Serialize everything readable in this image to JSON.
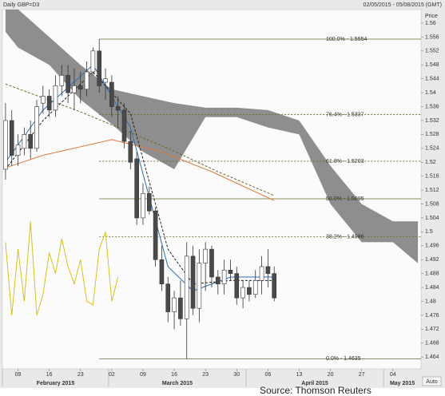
{
  "header": {
    "title": "Daily GBP=D3",
    "range": "02/05/2015 - 05/08/2015 (GMT)"
  },
  "source": "Source: Thomson Reuters",
  "auto_button": "Auto",
  "chart_data": {
    "type": "candlestick",
    "y_axis_label": "Price",
    "xlim": [
      "2015-02-05",
      "2015-05-08"
    ],
    "ylim": [
      1.4606,
      1.5639
    ],
    "yticks": [
      1.464,
      1.468,
      1.472,
      1.476,
      1.48,
      1.484,
      1.488,
      1.492,
      1.496,
      1.5,
      1.504,
      1.508,
      1.512,
      1.516,
      1.52,
      1.524,
      1.528,
      1.532,
      1.536,
      1.54,
      1.544,
      1.548,
      1.552,
      1.556,
      1.56
    ],
    "xticks": [
      {
        "value": "2015-02-09",
        "label": "09"
      },
      {
        "value": "2015-02-16",
        "label": "16"
      },
      {
        "value": "2015-02-23",
        "label": "23"
      },
      {
        "value": "2015-03-02",
        "label": "02"
      },
      {
        "value": "2015-03-09",
        "label": "09"
      },
      {
        "value": "2015-03-16",
        "label": "16"
      },
      {
        "value": "2015-03-23",
        "label": "23"
      },
      {
        "value": "2015-03-30",
        "label": "30"
      },
      {
        "value": "2015-04-06",
        "label": "06"
      },
      {
        "value": "2015-04-13",
        "label": "13"
      },
      {
        "value": "2015-04-20",
        "label": "20"
      },
      {
        "value": "2015-04-27",
        "label": "27"
      },
      {
        "value": "2015-05-04",
        "label": "04"
      }
    ],
    "month_labels": [
      {
        "value": "2015-02",
        "label": "February 2015"
      },
      {
        "value": "2015-03",
        "label": "March 2015"
      },
      {
        "value": "2015-04",
        "label": "April 2015"
      },
      {
        "value": "2015-05",
        "label": "May 2015"
      }
    ],
    "up_color": "#ffffff",
    "down_color": "#4a4a4a",
    "candles": {
      "x": [
        "2015-02-05",
        "2015-02-06",
        "2015-02-09",
        "2015-02-10",
        "2015-02-11",
        "2015-02-12",
        "2015-02-13",
        "2015-02-16",
        "2015-02-17",
        "2015-02-18",
        "2015-02-19",
        "2015-02-20",
        "2015-02-23",
        "2015-02-24",
        "2015-02-25",
        "2015-02-26",
        "2015-02-27",
        "2015-03-02",
        "2015-03-03",
        "2015-03-04",
        "2015-03-05",
        "2015-03-06",
        "2015-03-09",
        "2015-03-10",
        "2015-03-11",
        "2015-03-12",
        "2015-03-13",
        "2015-03-16",
        "2015-03-17",
        "2015-03-18",
        "2015-03-19",
        "2015-03-20",
        "2015-03-23",
        "2015-03-24",
        "2015-03-25",
        "2015-03-26",
        "2015-03-27",
        "2015-03-30",
        "2015-03-31",
        "2015-04-01",
        "2015-04-02",
        "2015-04-03",
        "2015-04-06",
        "2015-04-07"
      ],
      "open": [
        1.518,
        1.532,
        1.522,
        1.524,
        1.528,
        1.524,
        1.537,
        1.539,
        1.535,
        1.542,
        1.545,
        1.54,
        1.542,
        1.541,
        1.546,
        1.552,
        1.543,
        1.543,
        1.536,
        1.535,
        1.526,
        1.521,
        1.504,
        1.511,
        1.506,
        1.492,
        1.485,
        1.477,
        1.481,
        1.475,
        1.493,
        1.478,
        1.491,
        1.495,
        1.487,
        1.485,
        1.489,
        1.488,
        1.481,
        1.484,
        1.482,
        1.486,
        1.49,
        1.488
      ],
      "high": [
        1.537,
        1.535,
        1.528,
        1.53,
        1.532,
        1.538,
        1.542,
        1.541,
        1.545,
        1.548,
        1.548,
        1.547,
        1.546,
        1.549,
        1.553,
        1.5554,
        1.547,
        1.545,
        1.539,
        1.537,
        1.529,
        1.523,
        1.514,
        1.513,
        1.507,
        1.496,
        1.487,
        1.483,
        1.486,
        1.497,
        1.496,
        1.495,
        1.497,
        1.496,
        1.489,
        1.492,
        1.492,
        1.49,
        1.486,
        1.486,
        1.489,
        1.493,
        1.495,
        1.49
      ],
      "low": [
        1.515,
        1.519,
        1.519,
        1.522,
        1.521,
        1.523,
        1.534,
        1.533,
        1.533,
        1.539,
        1.537,
        1.535,
        1.537,
        1.539,
        1.545,
        1.54,
        1.538,
        1.533,
        1.53,
        1.524,
        1.518,
        1.502,
        1.502,
        1.505,
        1.49,
        1.483,
        1.474,
        1.472,
        1.473,
        1.4635,
        1.476,
        1.474,
        1.483,
        1.484,
        1.482,
        1.482,
        1.486,
        1.479,
        1.478,
        1.48,
        1.481,
        1.482,
        1.484,
        1.48
      ],
      "close": [
        1.532,
        1.522,
        1.525,
        1.528,
        1.524,
        1.536,
        1.539,
        1.535,
        1.542,
        1.545,
        1.54,
        1.542,
        1.541,
        1.546,
        1.552,
        1.542,
        1.544,
        1.536,
        1.535,
        1.526,
        1.52,
        1.504,
        1.511,
        1.506,
        1.492,
        1.485,
        1.477,
        1.481,
        1.475,
        1.493,
        1.478,
        1.491,
        1.495,
        1.487,
        1.485,
        1.489,
        1.488,
        1.481,
        1.484,
        1.482,
        1.486,
        1.49,
        1.488,
        1.481
      ]
    },
    "cloud": {
      "color": "#7a7a7a",
      "x": [
        "2015-02-05",
        "2015-02-09",
        "2015-02-16",
        "2015-02-23",
        "2015-03-02",
        "2015-03-09",
        "2015-03-16",
        "2015-03-23",
        "2015-03-30",
        "2015-04-06",
        "2015-04-13",
        "2015-04-20",
        "2015-04-27",
        "2015-05-04",
        "2015-05-08"
      ],
      "upper": [
        1.564,
        1.564,
        1.556,
        1.548,
        1.541,
        1.539,
        1.537,
        1.5357,
        1.5357,
        1.535,
        1.532,
        1.519,
        1.508,
        1.503,
        1.503
      ],
      "lower": [
        1.5575,
        1.553,
        1.548,
        1.538,
        1.531,
        1.523,
        1.518,
        1.533,
        1.533,
        1.53,
        1.528,
        1.508,
        1.497,
        1.497,
        1.491
      ]
    },
    "lines": [
      {
        "color": "#6b6b2a",
        "dashed": true,
        "x": [
          "2015-02-05",
          "2015-02-23",
          "2015-03-13",
          "2015-03-25",
          "2015-04-07"
        ],
        "values": [
          1.5425,
          1.5345,
          1.524,
          1.5173,
          1.5104
        ]
      },
      {
        "color": "#e0783a",
        "dashed": false,
        "x": [
          "2015-02-05",
          "2015-02-13",
          "2015-03-02",
          "2015-03-12",
          "2015-03-24",
          "2015-04-07"
        ],
        "values": [
          1.5184,
          1.522,
          1.5265,
          1.523,
          1.5173,
          1.509
        ]
      },
      {
        "color": "#2a6fb5",
        "dashed": false,
        "x": [
          "2015-02-05",
          "2015-02-13",
          "2015-02-25",
          "2015-03-05",
          "2015-03-13",
          "2015-03-19",
          "2015-03-27",
          "2015-04-07"
        ],
        "values": [
          1.52,
          1.535,
          1.548,
          1.53,
          1.49,
          1.483,
          1.487,
          1.487
        ]
      },
      {
        "color": "#222222",
        "dashed": true,
        "x": [
          "2015-02-05",
          "2015-02-13",
          "2015-02-25",
          "2015-03-05",
          "2015-03-13",
          "2015-03-19",
          "2015-03-27",
          "2015-04-07"
        ],
        "values": [
          1.518,
          1.532,
          1.546,
          1.534,
          1.495,
          1.485,
          1.486,
          1.486
        ]
      },
      {
        "color": "#d8c21a",
        "dashed": false,
        "x": [
          "2015-02-05",
          "2015-02-06",
          "2015-02-09",
          "2015-02-10",
          "2015-02-11",
          "2015-02-12",
          "2015-02-13",
          "2015-02-16",
          "2015-02-17",
          "2015-02-18",
          "2015-02-19",
          "2015-02-20",
          "2015-02-23",
          "2015-02-24",
          "2015-02-25",
          "2015-02-26",
          "2015-02-27",
          "2015-03-02",
          "2015-03-03"
        ],
        "values": [
          1.497,
          1.476,
          1.495,
          1.48,
          1.503,
          1.476,
          1.482,
          1.494,
          1.488,
          1.498,
          1.49,
          1.485,
          1.492,
          1.48,
          1.479,
          1.495,
          1.5,
          1.48,
          1.487
        ]
      }
    ],
    "fib_color": "#6b6b2a",
    "fib_levels": [
      {
        "label": "100.0% - 1.5554",
        "value": 1.5554,
        "dashed": false
      },
      {
        "label": "76.4% - 1.5337",
        "value": 1.5337,
        "dashed": true
      },
      {
        "label": "61.8% - 1.5203",
        "value": 1.5203,
        "dashed": true
      },
      {
        "label": "50.0% - 1.5095",
        "value": 1.5095,
        "dashed": false
      },
      {
        "label": "38.2% - 1.4986",
        "value": 1.4986,
        "dashed": true
      },
      {
        "label": "0.0% - 1.4635",
        "value": 1.4635,
        "dashed": false
      }
    ]
  }
}
